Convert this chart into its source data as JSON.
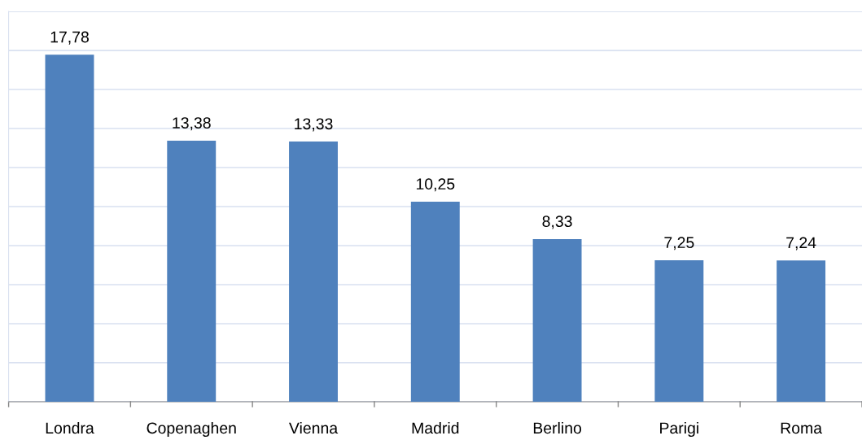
{
  "chart_data": {
    "type": "bar",
    "categories": [
      "Londra",
      "Copenaghen",
      "Vienna",
      "Madrid",
      "Berlino",
      "Parigi",
      "Roma"
    ],
    "values": [
      17.78,
      13.38,
      13.33,
      10.25,
      8.33,
      7.25,
      7.24
    ],
    "value_labels": [
      "17,78",
      "13,38",
      "13,33",
      "10,25",
      "8,33",
      "7,25",
      "7,24"
    ],
    "color": "#4f81bd",
    "ylim": [
      0,
      20
    ],
    "yticks": [
      {
        "value": 0,
        "label": null
      },
      {
        "value": 2,
        "label": null
      },
      {
        "value": 4,
        "label": null
      },
      {
        "value": 6,
        "label": null
      },
      {
        "value": 8,
        "label": null
      },
      {
        "value": 10,
        "label": null
      },
      {
        "value": 12,
        "label": null
      },
      {
        "value": 14,
        "label": null
      },
      {
        "value": 16,
        "label": null
      },
      {
        "value": 18,
        "label": null
      },
      {
        "value": 20,
        "label": null
      }
    ],
    "grid": "y",
    "tick_labels": "x"
  }
}
